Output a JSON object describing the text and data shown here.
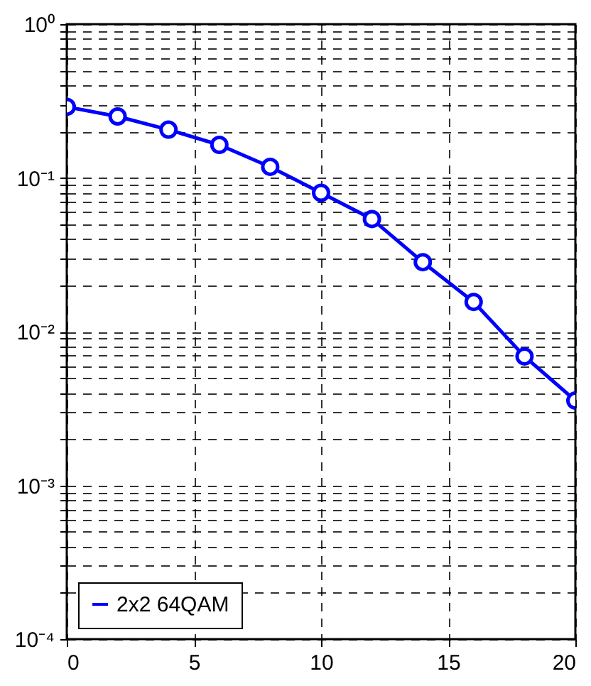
{
  "chart_data": {
    "type": "line",
    "x": [
      0,
      2,
      4,
      6,
      8,
      10,
      12,
      14,
      16,
      18,
      20
    ],
    "series": [
      {
        "name": "2x2 64QAM",
        "color": "#0000ff",
        "values": [
          0.29,
          0.251,
          0.206,
          0.164,
          0.118,
          0.08,
          0.054,
          0.0283,
          0.0156,
          0.0069,
          0.00356
        ]
      }
    ],
    "log": "y",
    "xlim": [
      0,
      20
    ],
    "ylim": [
      0.0001,
      1
    ],
    "xticks": [
      0,
      5,
      10,
      15,
      20
    ],
    "yticks": [
      {
        "value": 0.0001,
        "label": "10⁻⁴"
      },
      {
        "value": 0.0002,
        "label": null
      },
      {
        "value": 0.0003,
        "label": null
      },
      {
        "value": 0.0004,
        "label": null
      },
      {
        "value": 0.0005,
        "label": null
      },
      {
        "value": 0.0006,
        "label": null
      },
      {
        "value": 0.0007,
        "label": null
      },
      {
        "value": 0.0008,
        "label": null
      },
      {
        "value": 0.0009,
        "label": null
      },
      {
        "value": 0.001,
        "label": "10⁻³"
      },
      {
        "value": 0.002,
        "label": null
      },
      {
        "value": 0.003,
        "label": null
      },
      {
        "value": 0.004,
        "label": null
      },
      {
        "value": 0.005,
        "label": null
      },
      {
        "value": 0.006,
        "label": null
      },
      {
        "value": 0.007,
        "label": null
      },
      {
        "value": 0.008,
        "label": null
      },
      {
        "value": 0.009,
        "label": null
      },
      {
        "value": 0.01,
        "label": "10⁻²"
      },
      {
        "value": 0.02,
        "label": null
      },
      {
        "value": 0.03,
        "label": null
      },
      {
        "value": 0.04,
        "label": null
      },
      {
        "value": 0.05,
        "label": null
      },
      {
        "value": 0.06,
        "label": null
      },
      {
        "value": 0.07,
        "label": null
      },
      {
        "value": 0.08,
        "label": null
      },
      {
        "value": 0.09,
        "label": null
      },
      {
        "value": 0.1,
        "label": "10⁻¹"
      },
      {
        "value": 0.2,
        "label": null
      },
      {
        "value": 0.3,
        "label": null
      },
      {
        "value": 0.4,
        "label": null
      },
      {
        "value": 0.5,
        "label": null
      },
      {
        "value": 0.6,
        "label": null
      },
      {
        "value": 0.7,
        "label": null
      },
      {
        "value": 0.8,
        "label": null
      },
      {
        "value": 0.9,
        "label": null
      },
      {
        "value": 1,
        "label": "10⁰"
      }
    ],
    "grid": true,
    "line_style": "solid",
    "marker": "circle",
    "legend": "bottom left"
  }
}
